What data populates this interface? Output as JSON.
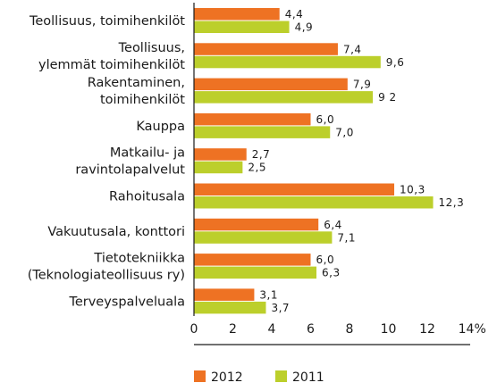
{
  "chart_data": {
    "type": "bar",
    "orientation": "horizontal",
    "categories": [
      [
        "Teollisuus, toimihenkilöt"
      ],
      [
        "Teollisuus,",
        "ylemmät toimihenkilöt"
      ],
      [
        "Rakentaminen,",
        "toimihenkilöt"
      ],
      [
        "Kauppa"
      ],
      [
        "Matkailu- ja",
        "ravintolapalvelut"
      ],
      [
        "Rahoitusala"
      ],
      [
        "Vakuutusala, konttori"
      ],
      [
        "Tietotekniikka",
        "(Teknologiateollisuus ry)"
      ],
      [
        "Terveyspalveluala"
      ]
    ],
    "series": [
      {
        "name": "2012",
        "color": "#ee7223",
        "values": [
          4.4,
          7.4,
          7.9,
          6.0,
          2.7,
          10.3,
          6.4,
          6.0,
          3.1
        ],
        "labels": [
          "4,4",
          "7,4",
          "7,9",
          "6,0",
          "2,7",
          "10,3",
          "6,4",
          "6,0",
          "3,1"
        ]
      },
      {
        "name": "2011",
        "color": "#bccf2b",
        "values": [
          4.9,
          9.6,
          9.2,
          7.0,
          2.5,
          12.3,
          7.1,
          6.3,
          3.7
        ],
        "labels": [
          "4,9",
          "9,6",
          "9 2",
          "7,0",
          "2,5",
          "12,3",
          "7,1",
          "6,3",
          "3,7"
        ]
      }
    ],
    "xlim": [
      0,
      14
    ],
    "xticks": [
      "0",
      "2",
      "4",
      "6",
      "8",
      "10",
      "12",
      "14"
    ],
    "xunit": "%",
    "grid": false,
    "legend_position": "bottom"
  }
}
